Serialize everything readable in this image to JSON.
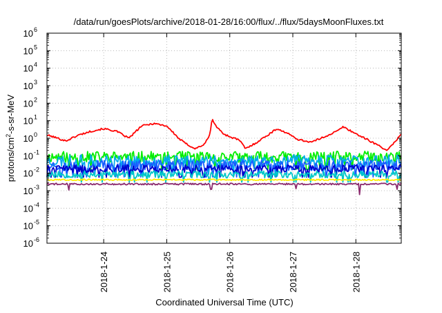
{
  "chart_data": {
    "type": "line",
    "title": "/data/run/goesPlots/archive/2018-01-28/16:00/flux/../flux/5daysMoonFluxes.txt",
    "xlabel": "Coordinated Universal Time (UTC)",
    "ylabel": "protons/cm²-s-sr-MeV",
    "yscale": "log",
    "ylim": [
      1e-06,
      1000000.0
    ],
    "y_ticks": [
      {
        "base": "10",
        "exp": "-6"
      },
      {
        "base": "10",
        "exp": "-5"
      },
      {
        "base": "10",
        "exp": "-4"
      },
      {
        "base": "10",
        "exp": "-3"
      },
      {
        "base": "10",
        "exp": "-2"
      },
      {
        "base": "10",
        "exp": "-1"
      },
      {
        "base": "10",
        "exp": "0"
      },
      {
        "base": "10",
        "exp": "1"
      },
      {
        "base": "10",
        "exp": "2"
      },
      {
        "base": "10",
        "exp": "3"
      },
      {
        "base": "10",
        "exp": "4"
      },
      {
        "base": "10",
        "exp": "5"
      },
      {
        "base": "10",
        "exp": "6"
      }
    ],
    "xlim_days": [
      23.1,
      28.72
    ],
    "x_ticks": [
      {
        "label": "2018-1-24",
        "day": 24
      },
      {
        "label": "2018-1-25",
        "day": 25
      },
      {
        "label": "2018-1-26",
        "day": 26
      },
      {
        "label": "2018-1-27",
        "day": 27
      },
      {
        "label": "2018-1-28",
        "day": 28
      }
    ],
    "grid": true,
    "series": [
      {
        "color": "#ff0000",
        "noise": 0.05,
        "points": [
          [
            23.1,
            1.5
          ],
          [
            23.2,
            1.2
          ],
          [
            23.4,
            0.7
          ],
          [
            23.6,
            1.5
          ],
          [
            23.8,
            2.5
          ],
          [
            24.0,
            3.5
          ],
          [
            24.2,
            2.5
          ],
          [
            24.4,
            1.0
          ],
          [
            24.6,
            5.0
          ],
          [
            24.8,
            7.0
          ],
          [
            25.0,
            5.0
          ],
          [
            25.2,
            0.9
          ],
          [
            25.3,
            0.5
          ],
          [
            25.45,
            0.25
          ],
          [
            25.6,
            0.45
          ],
          [
            25.68,
            1.5
          ],
          [
            25.72,
            12.0
          ],
          [
            25.8,
            4.0
          ],
          [
            25.9,
            1.8
          ],
          [
            26.0,
            1.2
          ],
          [
            26.15,
            0.8
          ],
          [
            26.25,
            0.25
          ],
          [
            26.4,
            0.5
          ],
          [
            26.6,
            1.5
          ],
          [
            26.75,
            3.5
          ],
          [
            26.9,
            2.0
          ],
          [
            27.1,
            0.8
          ],
          [
            27.3,
            0.6
          ],
          [
            27.5,
            1.2
          ],
          [
            27.7,
            2.5
          ],
          [
            27.8,
            4.5
          ],
          [
            28.0,
            1.8
          ],
          [
            28.3,
            0.5
          ],
          [
            28.5,
            0.2
          ],
          [
            28.6,
            0.5
          ],
          [
            28.72,
            1.8
          ]
        ]
      },
      {
        "color": "#00ee00",
        "base": 0.085,
        "noise": 0.32,
        "seed": 11
      },
      {
        "color": "#00aaee",
        "base": 0.05,
        "noise": 0.35,
        "seed": 23
      },
      {
        "color": "#1a5cff",
        "base": 0.028,
        "noise": 0.3,
        "seed": 37
      },
      {
        "color": "#0000cc",
        "base": 0.018,
        "noise": 0.22,
        "seed": 41
      },
      {
        "color": "#00c8c8",
        "base": 0.0085,
        "noise": 0.2,
        "seed": 53
      },
      {
        "color": "#ffee00",
        "base": 0.0042,
        "noise": 0.04,
        "seed": 67
      },
      {
        "color": "#8b2a6e",
        "base": 0.0024,
        "noise": 0.05,
        "seed": 79,
        "dips": [
          [
            23.45,
            0.0011
          ],
          [
            25.7,
            0.0012
          ],
          [
            27.05,
            0.0013
          ],
          [
            28.06,
            0.0006
          ],
          [
            28.65,
            0.0012
          ]
        ]
      }
    ]
  }
}
